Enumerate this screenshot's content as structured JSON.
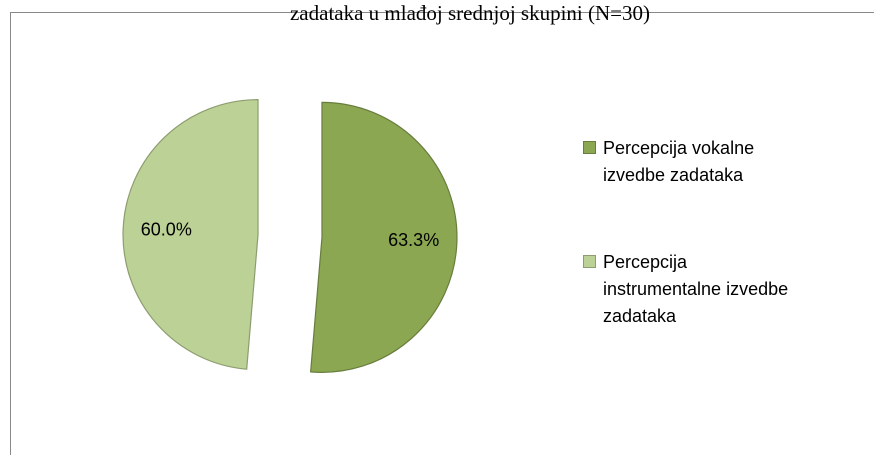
{
  "chart_data": {
    "type": "pie",
    "title": "zadataka u mlađoj srednjoj skupini (N=30)",
    "categories": [
      "Percepcija vokalne izvedbe zadataka",
      "Percepcija instrumentalne izvedbe zadataka"
    ],
    "values": [
      63.3,
      60.0
    ],
    "value_labels": [
      "63.3%",
      "60.0%"
    ],
    "colors": [
      "#8ba752",
      "#bcd195"
    ],
    "exploded": true,
    "legend": "right"
  }
}
